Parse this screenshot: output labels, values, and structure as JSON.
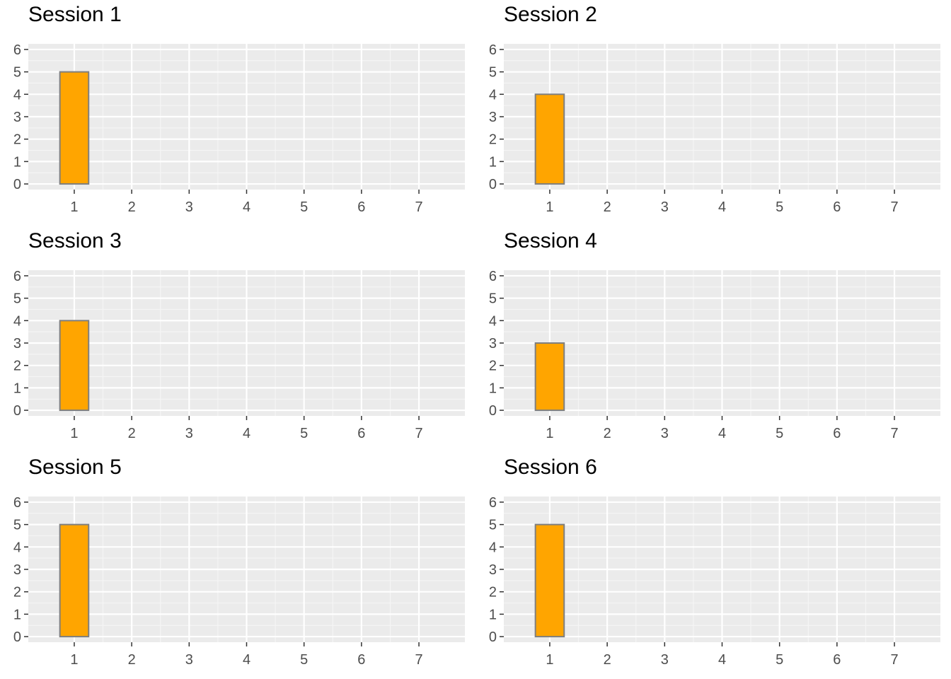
{
  "chart_data": [
    {
      "type": "bar",
      "title": "Session 1",
      "categories": [
        "1",
        "2",
        "3",
        "4",
        "5",
        "6",
        "7"
      ],
      "values": [
        5,
        0,
        0,
        0,
        0,
        0,
        0
      ],
      "xlabel": "",
      "ylabel": "",
      "xlim": [
        0.2,
        7.8
      ],
      "ylim": [
        -0.25,
        6.25
      ],
      "xticks": [
        1,
        2,
        3,
        4,
        5,
        6,
        7
      ],
      "yticks": [
        0,
        1,
        2,
        3,
        4,
        5,
        6
      ],
      "grid": true,
      "legend": "none"
    },
    {
      "type": "bar",
      "title": "Session 2",
      "categories": [
        "1",
        "2",
        "3",
        "4",
        "5",
        "6",
        "7"
      ],
      "values": [
        4,
        0,
        0,
        0,
        0,
        0,
        0
      ],
      "xlabel": "",
      "ylabel": "",
      "xlim": [
        0.2,
        7.8
      ],
      "ylim": [
        -0.25,
        6.25
      ],
      "xticks": [
        1,
        2,
        3,
        4,
        5,
        6,
        7
      ],
      "yticks": [
        0,
        1,
        2,
        3,
        4,
        5,
        6
      ],
      "grid": true,
      "legend": "none"
    },
    {
      "type": "bar",
      "title": "Session 3",
      "categories": [
        "1",
        "2",
        "3",
        "4",
        "5",
        "6",
        "7"
      ],
      "values": [
        4,
        0,
        0,
        0,
        0,
        0,
        0
      ],
      "xlabel": "",
      "ylabel": "",
      "xlim": [
        0.2,
        7.8
      ],
      "ylim": [
        -0.25,
        6.25
      ],
      "xticks": [
        1,
        2,
        3,
        4,
        5,
        6,
        7
      ],
      "yticks": [
        0,
        1,
        2,
        3,
        4,
        5,
        6
      ],
      "grid": true,
      "legend": "none"
    },
    {
      "type": "bar",
      "title": "Session 4",
      "categories": [
        "1",
        "2",
        "3",
        "4",
        "5",
        "6",
        "7"
      ],
      "values": [
        3,
        0,
        0,
        0,
        0,
        0,
        0
      ],
      "xlabel": "",
      "ylabel": "",
      "xlim": [
        0.2,
        7.8
      ],
      "ylim": [
        -0.25,
        6.25
      ],
      "xticks": [
        1,
        2,
        3,
        4,
        5,
        6,
        7
      ],
      "yticks": [
        0,
        1,
        2,
        3,
        4,
        5,
        6
      ],
      "grid": true,
      "legend": "none"
    },
    {
      "type": "bar",
      "title": "Session 5",
      "categories": [
        "1",
        "2",
        "3",
        "4",
        "5",
        "6",
        "7"
      ],
      "values": [
        5,
        0,
        0,
        0,
        0,
        0,
        0
      ],
      "xlabel": "",
      "ylabel": "",
      "xlim": [
        0.2,
        7.8
      ],
      "ylim": [
        -0.25,
        6.25
      ],
      "xticks": [
        1,
        2,
        3,
        4,
        5,
        6,
        7
      ],
      "yticks": [
        0,
        1,
        2,
        3,
        4,
        5,
        6
      ],
      "grid": true,
      "legend": "none"
    },
    {
      "type": "bar",
      "title": "Session 6",
      "categories": [
        "1",
        "2",
        "3",
        "4",
        "5",
        "6",
        "7"
      ],
      "values": [
        5,
        0,
        0,
        0,
        0,
        0,
        0
      ],
      "xlabel": "",
      "ylabel": "",
      "xlim": [
        0.2,
        7.8
      ],
      "ylim": [
        -0.25,
        6.25
      ],
      "xticks": [
        1,
        2,
        3,
        4,
        5,
        6,
        7
      ],
      "yticks": [
        0,
        1,
        2,
        3,
        4,
        5,
        6
      ],
      "grid": true,
      "legend": "none"
    }
  ],
  "colors": {
    "bar_fill": "#FFA500",
    "bar_stroke": "#7F7F7F",
    "panel_background": "#EBEBEB",
    "grid_major": "#FFFFFF",
    "grid_minor": "#F5F5F5",
    "tick_text": "#4D4D4D",
    "tick_mark": "#333333",
    "title_text": "#000000"
  }
}
